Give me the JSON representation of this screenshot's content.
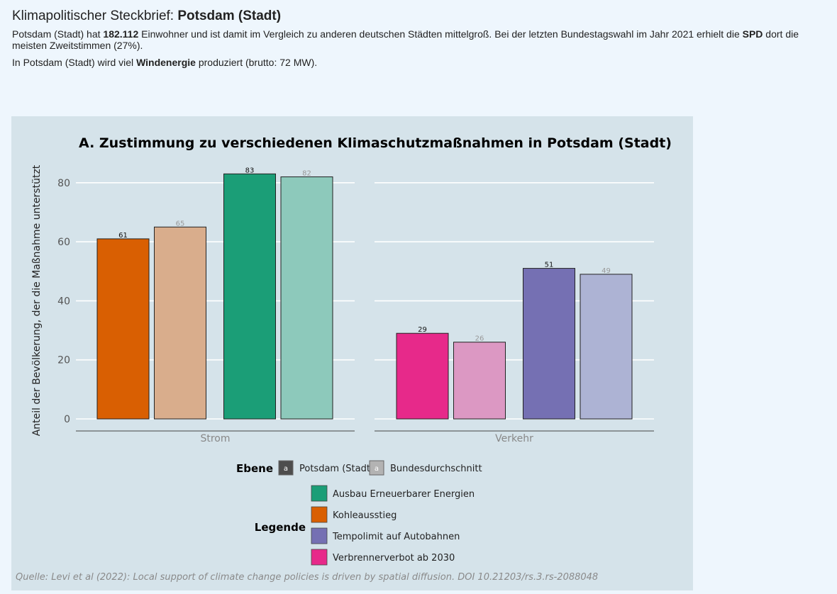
{
  "header": {
    "title_prefix": "Klimapolitischer Steckbrief: ",
    "title_city": "Potsdam (Stadt)",
    "p1_a": "Potsdam (Stadt) hat ",
    "p1_pop": "182.112",
    "p1_b": " Einwohner und ist damit im Vergleich zu anderen deutschen Städten mittelgroß. Bei der letzten Bundestagswahl im Jahr 2021 erhielt die ",
    "p1_party": "SPD",
    "p1_c": " dort die meisten Zweitstimmen (27%).",
    "p2_a": "In Potsdam (Stadt) wird viel ",
    "p2_energy": "Windenergie",
    "p2_b": " produziert (brutto: 72 MW)."
  },
  "chart_data": {
    "type": "bar",
    "title": "A. Zustimmung zu verschiedenen Klimaschutzmaßnahmen in Potsdam (Stadt)",
    "ylabel": "Anteil der Bevölkerung, der die Maßnahme unterstützt",
    "ylim": [
      0,
      88
    ],
    "yticks": [
      0,
      20,
      40,
      60,
      80
    ],
    "grid": true,
    "facets": [
      {
        "label": "Strom",
        "bars": [
          {
            "measure": "Kohleausstieg",
            "level": "Potsdam (Stadt)",
            "value": 61,
            "label": "61",
            "color": "#d95f02"
          },
          {
            "measure": "Kohleausstieg",
            "level": "Bundesdurchschnitt",
            "value": 65,
            "label": "65",
            "color": "#d9ad8c"
          },
          {
            "measure": "Ausbau Erneuerbarer Energien",
            "level": "Potsdam (Stadt)",
            "value": 83,
            "label": "83",
            "color": "#1b9e77"
          },
          {
            "measure": "Ausbau Erneuerbarer Energien",
            "level": "Bundesdurchschnitt",
            "value": 82,
            "label": "82",
            "color": "#8dc9bb"
          }
        ]
      },
      {
        "label": "Verkehr",
        "bars": [
          {
            "measure": "Verbrennerverbot ab 2030",
            "level": "Potsdam (Stadt)",
            "value": 29,
            "label": "29",
            "color": "#e7298a"
          },
          {
            "measure": "Verbrennerverbot ab 2030",
            "level": "Bundesdurchschnitt",
            "value": 26,
            "label": "26",
            "color": "#dc98c3"
          },
          {
            "measure": "Tempolimit auf Autobahnen",
            "level": "Potsdam (Stadt)",
            "value": 51,
            "label": "51",
            "color": "#7570b3"
          },
          {
            "measure": "Tempolimit auf Autobahnen",
            "level": "Bundesdurchschnitt",
            "value": 49,
            "label": "49",
            "color": "#adb3d4"
          }
        ]
      }
    ],
    "legend_ebene": {
      "title": "Ebene",
      "items": [
        {
          "label": "Potsdam (Stadt)",
          "key": "a",
          "color": "#4d4d4d",
          "keycolor": "#ffffff"
        },
        {
          "label": "Bundesdurchschnitt",
          "key": "a",
          "color": "#b3b3b3",
          "keycolor": "#ffffff"
        }
      ]
    },
    "legend_measures": {
      "title": "Legende",
      "items": [
        {
          "label": "Ausbau Erneuerbarer Energien",
          "color": "#1b9e77"
        },
        {
          "label": "Kohleausstieg",
          "color": "#d95f02"
        },
        {
          "label": "Tempolimit auf Autobahnen",
          "color": "#7570b3"
        },
        {
          "label": "Verbrennerverbot ab 2030",
          "color": "#e7298a"
        }
      ]
    },
    "caption": "Quelle: Levi et al (2022): Local support of climate change policies is driven by spatial diffusion. DOI 10.21203/rs.3.rs-2088048"
  }
}
